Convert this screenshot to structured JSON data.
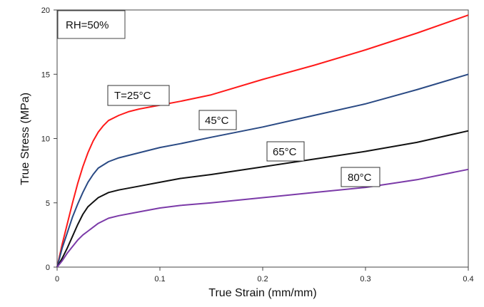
{
  "chart_data": {
    "type": "line",
    "title": "",
    "xlabel": "True Strain (mm/mm)",
    "ylabel": "True Stress (MPa)",
    "xlim": [
      0,
      0.4
    ],
    "ylim": [
      0,
      20
    ],
    "x_ticks": [
      "0",
      "0.1",
      "0.2",
      "0.3",
      "0.4"
    ],
    "y_ticks": [
      "0",
      "5",
      "10",
      "15",
      "20"
    ],
    "grid": false,
    "annotation": "RH=50%",
    "series": [
      {
        "name": "T=25°C",
        "color": "#ff1a1a",
        "x": [
          0,
          0.005,
          0.01,
          0.015,
          0.02,
          0.025,
          0.03,
          0.035,
          0.04,
          0.045,
          0.05,
          0.06,
          0.07,
          0.08,
          0.1,
          0.12,
          0.15,
          0.2,
          0.25,
          0.3,
          0.35,
          0.4
        ],
        "y": [
          0,
          1.8,
          3.4,
          5.0,
          6.5,
          7.8,
          8.9,
          9.8,
          10.5,
          11.0,
          11.4,
          11.8,
          12.1,
          12.3,
          12.6,
          12.9,
          13.4,
          14.6,
          15.7,
          16.9,
          18.2,
          19.6
        ]
      },
      {
        "name": "45°C",
        "color": "#2a4a84",
        "x": [
          0,
          0.005,
          0.01,
          0.015,
          0.02,
          0.025,
          0.03,
          0.035,
          0.04,
          0.05,
          0.06,
          0.08,
          0.1,
          0.12,
          0.15,
          0.2,
          0.25,
          0.3,
          0.35,
          0.4
        ],
        "y": [
          0,
          1.5,
          2.7,
          3.9,
          4.9,
          5.8,
          6.6,
          7.2,
          7.7,
          8.2,
          8.5,
          8.9,
          9.3,
          9.6,
          10.1,
          10.9,
          11.8,
          12.7,
          13.8,
          15.0
        ]
      },
      {
        "name": "65°C",
        "color": "#111111",
        "x": [
          0,
          0.005,
          0.01,
          0.015,
          0.02,
          0.025,
          0.03,
          0.04,
          0.05,
          0.06,
          0.08,
          0.1,
          0.12,
          0.15,
          0.2,
          0.25,
          0.3,
          0.35,
          0.4
        ],
        "y": [
          0,
          0.7,
          1.5,
          2.4,
          3.3,
          4.1,
          4.7,
          5.4,
          5.8,
          6.0,
          6.3,
          6.6,
          6.9,
          7.2,
          7.8,
          8.4,
          9.0,
          9.7,
          10.6
        ]
      },
      {
        "name": "80°C",
        "color": "#7b3aa8",
        "x": [
          0,
          0.005,
          0.01,
          0.015,
          0.02,
          0.025,
          0.03,
          0.04,
          0.05,
          0.06,
          0.08,
          0.1,
          0.12,
          0.15,
          0.2,
          0.25,
          0.3,
          0.35,
          0.4
        ],
        "y": [
          0,
          0.5,
          1.1,
          1.6,
          2.1,
          2.5,
          2.8,
          3.4,
          3.8,
          4.0,
          4.3,
          4.6,
          4.8,
          5.0,
          5.4,
          5.8,
          6.2,
          6.8,
          7.6
        ]
      }
    ],
    "labels": [
      {
        "text": "T=25°C",
        "series": 0
      },
      {
        "text": "45°C",
        "series": 1
      },
      {
        "text": "65°C",
        "series": 2
      },
      {
        "text": "80°C",
        "series": 3
      }
    ]
  }
}
